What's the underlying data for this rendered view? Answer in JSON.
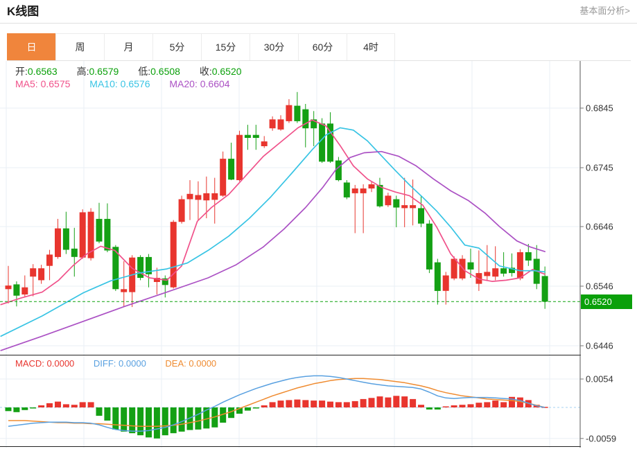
{
  "header": {
    "title": "K线图",
    "link": "基本面分析>"
  },
  "tabs": {
    "items": [
      {
        "label": "日",
        "active": true
      },
      {
        "label": "周",
        "active": false
      },
      {
        "label": "月",
        "active": false
      },
      {
        "label": "5分",
        "active": false
      },
      {
        "label": "15分",
        "active": false
      },
      {
        "label": "30分",
        "active": false
      },
      {
        "label": "60分",
        "active": false
      },
      {
        "label": "4时",
        "active": false
      }
    ]
  },
  "legend": {
    "ohlc": [
      {
        "label": "开:",
        "value": "0.6563"
      },
      {
        "label": "高:",
        "value": "0.6579"
      },
      {
        "label": "低:",
        "value": "0.6508"
      },
      {
        "label": "收:",
        "value": "0.6520"
      }
    ],
    "ma": [
      {
        "label": "MA5:",
        "value": "0.6575"
      },
      {
        "label": "MA10:",
        "value": "0.6576"
      },
      {
        "label": "MA20:",
        "value": "0.6604"
      }
    ],
    "macd": [
      {
        "label": "MACD:",
        "value": "0.0000"
      },
      {
        "label": "DIFF:",
        "value": "0.0000"
      },
      {
        "label": "DEA:",
        "value": "0.0000"
      }
    ]
  },
  "colors": {
    "up": "#e8352e",
    "down": "#14a014",
    "badge": "#0aa00a",
    "price_line": "#0aa00a",
    "ma5": "#f0518a",
    "ma10": "#38c4e4",
    "ma20": "#ab51c4",
    "diff": "#58a0e0",
    "dea": "#ef8b30",
    "zero_line": "#a5d2f0",
    "grid": "#eaeff6",
    "axis": "#555555",
    "tab_active": "#f0853c",
    "axis_text": "#333333"
  },
  "chart_data": [
    {
      "type": "candlestick",
      "title": "K线图 日线",
      "y_ticks": [
        {
          "label": "0.6845",
          "price": 0.6845
        },
        {
          "label": "0.6745",
          "price": 0.6745
        },
        {
          "label": "0.6646",
          "price": 0.6646
        },
        {
          "label": "0.6546",
          "price": 0.6546
        },
        {
          "label": "0.6446",
          "price": 0.6446
        }
      ],
      "current_price": {
        "label": "0.6520",
        "value": 0.652
      },
      "candles": [
        [
          0.6541,
          0.658,
          0.6517,
          0.6547
        ],
        [
          0.6549,
          0.6554,
          0.6512,
          0.653
        ],
        [
          0.6532,
          0.6564,
          0.6527,
          0.6544
        ],
        [
          0.6562,
          0.6583,
          0.6529,
          0.6576
        ],
        [
          0.6556,
          0.6582,
          0.655,
          0.6576
        ],
        [
          0.658,
          0.6607,
          0.6556,
          0.6599
        ],
        [
          0.6595,
          0.6659,
          0.6592,
          0.6643
        ],
        [
          0.6643,
          0.6671,
          0.66,
          0.6607
        ],
        [
          0.6609,
          0.6644,
          0.6562,
          0.6595
        ],
        [
          0.6594,
          0.6675,
          0.6592,
          0.667
        ],
        [
          0.6593,
          0.6677,
          0.6589,
          0.6671
        ],
        [
          0.6659,
          0.6686,
          0.6618,
          0.6621
        ],
        [
          0.6659,
          0.6685,
          0.6603,
          0.6606
        ],
        [
          0.6612,
          0.6615,
          0.6538,
          0.6541
        ],
        [
          0.6536,
          0.6588,
          0.6512,
          0.6541
        ],
        [
          0.6536,
          0.6598,
          0.6511,
          0.6594
        ],
        [
          0.6595,
          0.6598,
          0.6556,
          0.656
        ],
        [
          0.6595,
          0.66,
          0.6544,
          0.6566
        ],
        [
          0.6553,
          0.6577,
          0.6532,
          0.656
        ],
        [
          0.6559,
          0.6564,
          0.6527,
          0.6548
        ],
        [
          0.6544,
          0.6657,
          0.6542,
          0.6654
        ],
        [
          0.6654,
          0.6698,
          0.6651,
          0.6692
        ],
        [
          0.6692,
          0.6724,
          0.6657,
          0.6701
        ],
        [
          0.6691,
          0.6722,
          0.6657,
          0.6699
        ],
        [
          0.669,
          0.673,
          0.666,
          0.6702
        ],
        [
          0.6691,
          0.6728,
          0.6651,
          0.6702
        ],
        [
          0.6698,
          0.6772,
          0.6696,
          0.676
        ],
        [
          0.676,
          0.6787,
          0.6724,
          0.6725
        ],
        [
          0.6724,
          0.6807,
          0.6722,
          0.68
        ],
        [
          0.68,
          0.6817,
          0.6775,
          0.6795
        ],
        [
          0.68,
          0.6817,
          0.6775,
          0.6795
        ],
        [
          0.6781,
          0.6798,
          0.6778,
          0.6789
        ],
        [
          0.6811,
          0.6831,
          0.6807,
          0.6826
        ],
        [
          0.6809,
          0.6833,
          0.6807,
          0.6826
        ],
        [
          0.6823,
          0.686,
          0.682,
          0.685
        ],
        [
          0.6849,
          0.6872,
          0.682,
          0.6823
        ],
        [
          0.6843,
          0.6852,
          0.6779,
          0.6811
        ],
        [
          0.6826,
          0.684,
          0.6781,
          0.6811
        ],
        [
          0.6819,
          0.6828,
          0.6753,
          0.6755
        ],
        [
          0.6819,
          0.6838,
          0.6753,
          0.6755
        ],
        [
          0.6757,
          0.6763,
          0.6722,
          0.6724
        ],
        [
          0.672,
          0.6724,
          0.6692,
          0.6695
        ],
        [
          0.6702,
          0.6716,
          0.6635,
          0.671
        ],
        [
          0.6702,
          0.6717,
          0.6635,
          0.671
        ],
        [
          0.671,
          0.6722,
          0.6704,
          0.6717
        ],
        [
          0.6716,
          0.6728,
          0.6678,
          0.668
        ],
        [
          0.6682,
          0.6703,
          0.6679,
          0.6698
        ],
        [
          0.6692,
          0.6698,
          0.6645,
          0.6678
        ],
        [
          0.6677,
          0.6728,
          0.6645,
          0.6682
        ],
        [
          0.6677,
          0.6725,
          0.6648,
          0.6682
        ],
        [
          0.6677,
          0.6698,
          0.6645,
          0.6651
        ],
        [
          0.6651,
          0.6657,
          0.6568,
          0.6574
        ],
        [
          0.6586,
          0.6592,
          0.6515,
          0.6538
        ],
        [
          0.6538,
          0.657,
          0.6515,
          0.6564
        ],
        [
          0.6559,
          0.6596,
          0.6556,
          0.6592
        ],
        [
          0.6559,
          0.6598,
          0.6556,
          0.6592
        ],
        [
          0.6586,
          0.6609,
          0.656,
          0.6574
        ],
        [
          0.655,
          0.6606,
          0.6538,
          0.6568
        ],
        [
          0.6563,
          0.6615,
          0.6556,
          0.657
        ],
        [
          0.6562,
          0.6613,
          0.6556,
          0.6576
        ],
        [
          0.6576,
          0.6603,
          0.6562,
          0.6567
        ],
        [
          0.6577,
          0.6601,
          0.6562,
          0.6568
        ],
        [
          0.6559,
          0.6608,
          0.6556,
          0.6603
        ],
        [
          0.6603,
          0.6617,
          0.658,
          0.6589
        ],
        [
          0.6592,
          0.6615,
          0.6541,
          0.655
        ],
        [
          0.6563,
          0.6579,
          0.6508,
          0.652
        ]
      ],
      "ma_lines": [
        {
          "name": "MA5",
          "color": "#f0518a",
          "points": [
            [
              -0.9,
              0.6515
            ],
            [
              1.5,
              0.6526
            ],
            [
              4.1,
              0.6536
            ],
            [
              6.1,
              0.6556
            ],
            [
              7.8,
              0.658
            ],
            [
              9.5,
              0.66
            ],
            [
              11.2,
              0.6613
            ],
            [
              12.9,
              0.6606
            ],
            [
              15.0,
              0.6576
            ],
            [
              17.1,
              0.656
            ],
            [
              19.2,
              0.6556
            ],
            [
              21.0,
              0.658
            ],
            [
              22.9,
              0.6655
            ],
            [
              24.6,
              0.6678
            ],
            [
              26.7,
              0.67
            ],
            [
              28.8,
              0.6732
            ],
            [
              30.9,
              0.6764
            ],
            [
              33.0,
              0.6788
            ],
            [
              35.1,
              0.6812
            ],
            [
              36.8,
              0.6825
            ],
            [
              38.5,
              0.6815
            ],
            [
              40.2,
              0.6782
            ],
            [
              41.8,
              0.6748
            ],
            [
              43.5,
              0.6726
            ],
            [
              45.2,
              0.6712
            ],
            [
              46.9,
              0.6704
            ],
            [
              48.6,
              0.6698
            ],
            [
              50.2,
              0.6682
            ],
            [
              51.9,
              0.6645
            ],
            [
              53.6,
              0.66
            ],
            [
              55.3,
              0.6572
            ],
            [
              57.0,
              0.6558
            ],
            [
              58.6,
              0.6554
            ],
            [
              60.3,
              0.6556
            ],
            [
              62.0,
              0.656
            ],
            [
              63.5,
              0.6574
            ],
            [
              65,
              0.6566
            ]
          ]
        },
        {
          "name": "MA10",
          "color": "#38c4e4",
          "points": [
            [
              -0.9,
              0.6462
            ],
            [
              4.1,
              0.6496
            ],
            [
              9.1,
              0.6535
            ],
            [
              12.4,
              0.6555
            ],
            [
              15.8,
              0.6568
            ],
            [
              19.2,
              0.6575
            ],
            [
              21.7,
              0.6585
            ],
            [
              24.2,
              0.6606
            ],
            [
              26.7,
              0.663
            ],
            [
              29.2,
              0.666
            ],
            [
              31.8,
              0.6696
            ],
            [
              34.3,
              0.6735
            ],
            [
              36.8,
              0.6775
            ],
            [
              38.5,
              0.68
            ],
            [
              40.2,
              0.6812
            ],
            [
              41.8,
              0.6808
            ],
            [
              43.5,
              0.679
            ],
            [
              45.2,
              0.6765
            ],
            [
              46.9,
              0.674
            ],
            [
              48.6,
              0.6716
            ],
            [
              50.2,
              0.6695
            ],
            [
              51.9,
              0.6672
            ],
            [
              53.6,
              0.6645
            ],
            [
              55.3,
              0.6615
            ],
            [
              57.0,
              0.661
            ],
            [
              59.5,
              0.658
            ],
            [
              62.0,
              0.6572
            ],
            [
              63.7,
              0.6572
            ],
            [
              65,
              0.657
            ]
          ]
        },
        {
          "name": "MA20",
          "color": "#ab51c4",
          "points": [
            [
              -0.9,
              0.6438
            ],
            [
              4.1,
              0.6462
            ],
            [
              9.1,
              0.6487
            ],
            [
              14.1,
              0.6512
            ],
            [
              19.2,
              0.6536
            ],
            [
              24.2,
              0.656
            ],
            [
              27.6,
              0.6582
            ],
            [
              30.9,
              0.6612
            ],
            [
              33.4,
              0.6642
            ],
            [
              36.0,
              0.6678
            ],
            [
              38.1,
              0.6712
            ],
            [
              39.7,
              0.6742
            ],
            [
              41.4,
              0.6762
            ],
            [
              43.1,
              0.677
            ],
            [
              45.2,
              0.6772
            ],
            [
              47.3,
              0.6764
            ],
            [
              49.4,
              0.6748
            ],
            [
              51.5,
              0.6726
            ],
            [
              53.6,
              0.6706
            ],
            [
              55.7,
              0.669
            ],
            [
              57.8,
              0.6668
            ],
            [
              59.5,
              0.6646
            ],
            [
              61.6,
              0.6622
            ],
            [
              63.2,
              0.6612
            ],
            [
              65,
              0.6604
            ]
          ]
        }
      ]
    },
    {
      "type": "bar",
      "title": "MACD",
      "y_ticks": [
        {
          "label": "0.0054",
          "value": 0.0054
        },
        {
          "label": "-0.0059",
          "value": -0.0059
        }
      ],
      "histogram": [
        -0.0007,
        -0.0009,
        -0.0005,
        -0.0002,
        0.0004,
        0.0008,
        0.0011,
        0.0006,
        0.0005,
        0.001,
        0.001,
        -0.0016,
        -0.0025,
        -0.0042,
        -0.0046,
        -0.0049,
        -0.0053,
        -0.0057,
        -0.0059,
        -0.0053,
        -0.0049,
        -0.0046,
        -0.0043,
        -0.0042,
        -0.004,
        -0.0038,
        -0.0029,
        -0.002,
        -0.0012,
        -0.0006,
        -0.0002,
        0.0004,
        0.001,
        0.0013,
        0.0014,
        0.0015,
        0.0014,
        0.0013,
        0.0013,
        0.0011,
        0.001,
        0.001,
        0.0012,
        0.0016,
        0.0018,
        0.0021,
        0.0019,
        0.0022,
        0.0021,
        0.0016,
        0.0005,
        -0.0004,
        -0.0004,
        0.0002,
        0.0004,
        0.0005,
        0.0006,
        0.0009,
        0.001,
        0.0013,
        0.001,
        0.002,
        0.0019,
        0.0014,
        0.0005,
        0.0001
      ],
      "diff": [
        -0.0036,
        -0.0034,
        -0.0032,
        -0.003,
        -0.0029,
        -0.0028,
        -0.0028,
        -0.0028,
        -0.0029,
        -0.0029,
        -0.003,
        -0.0033,
        -0.0038,
        -0.0042,
        -0.0044,
        -0.0045,
        -0.0045,
        -0.0044,
        -0.0041,
        -0.0038,
        -0.0033,
        -0.0027,
        -0.002,
        -0.0013,
        -0.0005,
        0.0002,
        0.001,
        0.0017,
        0.0024,
        0.003,
        0.0036,
        0.0041,
        0.0046,
        0.005,
        0.0054,
        0.0057,
        0.0059,
        0.006,
        0.006,
        0.0059,
        0.0057,
        0.0054,
        0.0051,
        0.0048,
        0.0045,
        0.0043,
        0.0041,
        0.004,
        0.0039,
        0.0038,
        0.0035,
        0.0029,
        0.0022,
        0.0018,
        0.0017,
        0.0018,
        0.0019,
        0.0019,
        0.0019,
        0.0018,
        0.0017,
        0.0016,
        0.0013,
        0.0008,
        0.0003,
        0.0
      ],
      "dea": [
        -0.0025,
        -0.0025,
        -0.0025,
        -0.0026,
        -0.0027,
        -0.0028,
        -0.0029,
        -0.0029,
        -0.003,
        -0.003,
        -0.0031,
        -0.0031,
        -0.0032,
        -0.0033,
        -0.0034,
        -0.0035,
        -0.0036,
        -0.0036,
        -0.0036,
        -0.0035,
        -0.0034,
        -0.0032,
        -0.0029,
        -0.0026,
        -0.0022,
        -0.0018,
        -0.0013,
        -0.0008,
        -0.0002,
        0.0004,
        0.001,
        0.0016,
        0.0022,
        0.0027,
        0.0032,
        0.0037,
        0.0041,
        0.0045,
        0.0048,
        0.0051,
        0.0053,
        0.0054,
        0.0055,
        0.0055,
        0.0054,
        0.0053,
        0.0051,
        0.0049,
        0.0047,
        0.0044,
        0.0041,
        0.0037,
        0.0032,
        0.0028,
        0.0025,
        0.0022,
        0.002,
        0.0018,
        0.0016,
        0.0015,
        0.0014,
        0.0013,
        0.0011,
        0.0008,
        0.0004,
        0.0
      ]
    }
  ]
}
